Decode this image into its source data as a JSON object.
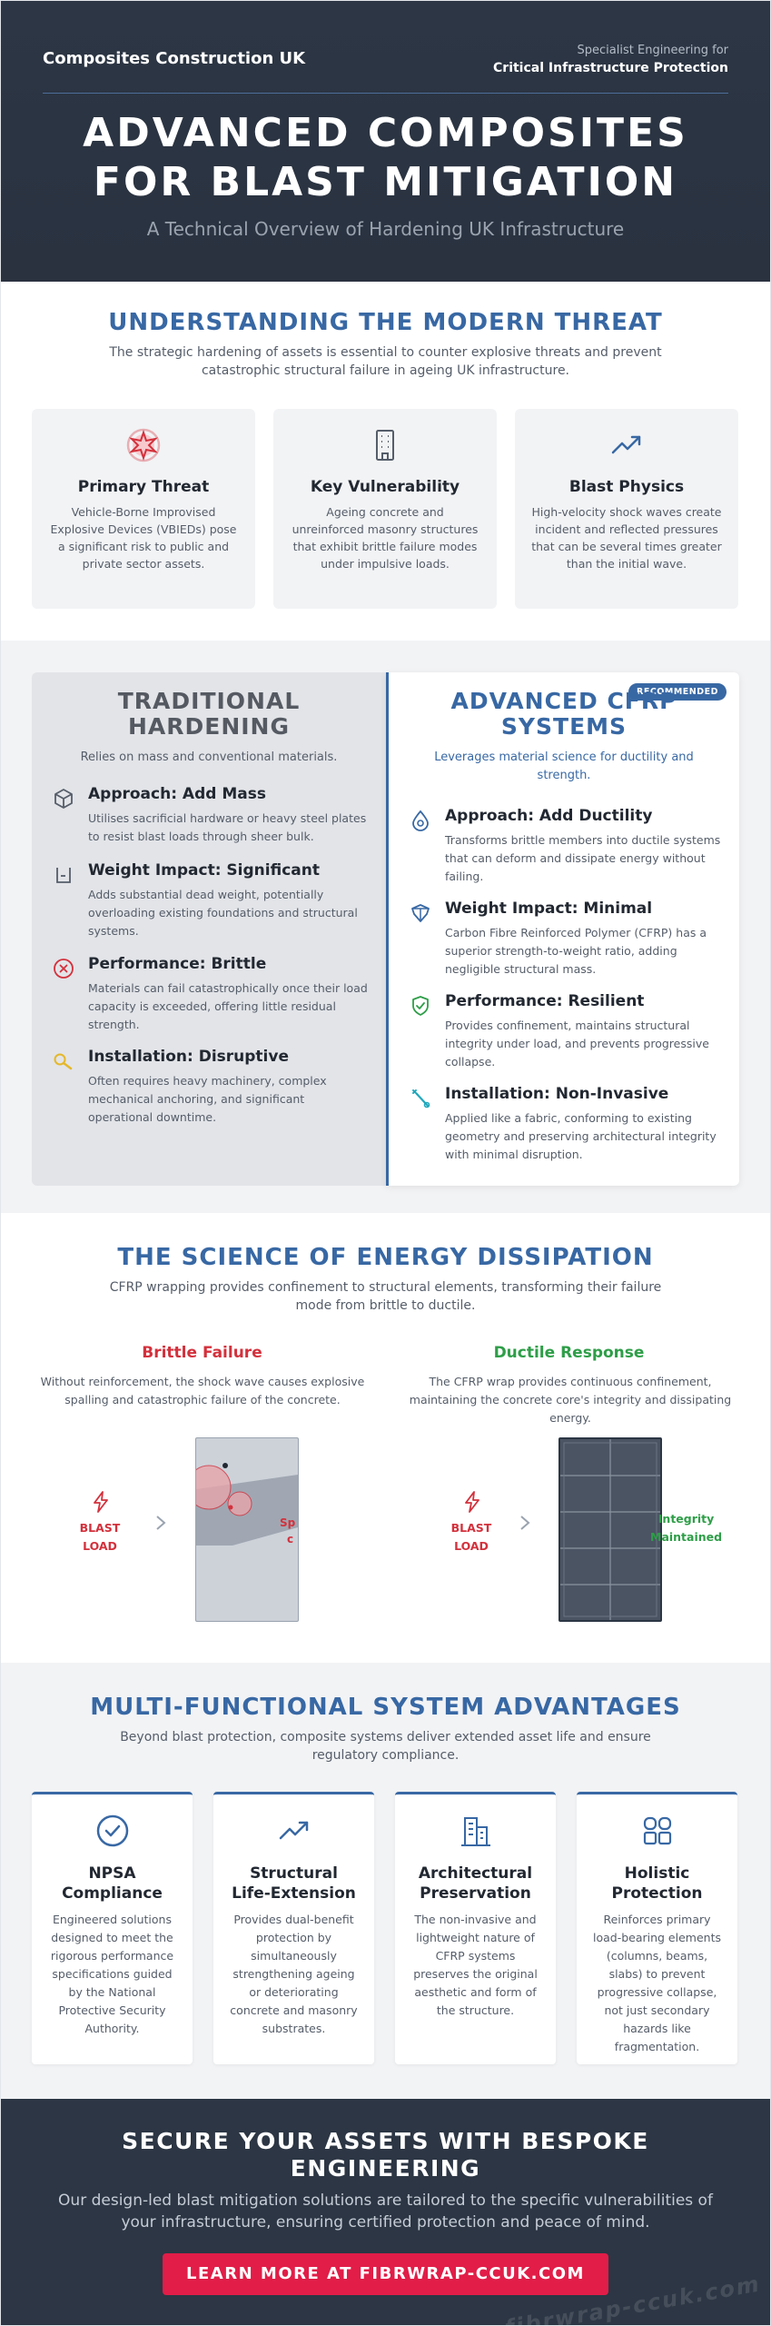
{
  "header": {
    "brand": "Composites Construction UK",
    "tagline_line1": "Specialist Engineering for",
    "tagline_line2": "Critical Infrastructure Protection",
    "title_line1": "ADVANCED COMPOSITES",
    "title_line2": "FOR BLAST MITIGATION",
    "subtitle": "A Technical Overview of Hardening UK Infrastructure"
  },
  "threat": {
    "title": "UNDERSTANDING THE MODERN THREAT",
    "subtitle": "The strategic hardening of assets is essential to counter explosive threats and prevent catastrophic structural failure in ageing UK infrastructure.",
    "cards": [
      {
        "icon": "explosion-icon",
        "title": "Primary Threat",
        "text": "Vehicle-Borne Improvised Explosive Devices (VBIEDs) pose a significant risk to public and private sector assets."
      },
      {
        "icon": "building-icon",
        "title": "Key Vulnerability",
        "text": "Ageing concrete and unreinforced masonry structures that exhibit brittle failure modes under impulsive loads."
      },
      {
        "icon": "trend-up-icon",
        "title": "Blast Physics",
        "text": "High-velocity shock waves create incident and reflected pressures that can be several times greater than the initial wave."
      }
    ]
  },
  "comparison": {
    "traditional": {
      "title_line1": "TRADITIONAL",
      "title_line2": "HARDENING",
      "subtitle": "Relies on mass and conventional materials.",
      "features": [
        {
          "icon": "cube-icon",
          "title": "Approach: Add Mass",
          "text": "Utilises sacrificial hardware or heavy steel plates to resist blast loads through sheer bulk."
        },
        {
          "icon": "weight-icon",
          "title": "Weight Impact: Significant",
          "text": "Adds substantial dead weight, potentially overloading existing foundations and structural systems."
        },
        {
          "icon": "x-circle-icon",
          "title": "Performance: Brittle",
          "text": "Materials can fail catastrophically once their load capacity is exceeded, offering little residual strength."
        },
        {
          "icon": "wrench-icon",
          "title": "Installation: Disruptive",
          "text": "Often requires heavy machinery, complex mechanical anchoring, and significant operational downtime."
        }
      ]
    },
    "advanced": {
      "badge": "RECOMMENDED",
      "title_line1": "ADVANCED CFRP",
      "title_line2": "SYSTEMS",
      "subtitle": "Leverages material science for ductility and strength.",
      "features": [
        {
          "icon": "droplet-icon",
          "title": "Approach: Add Ductility",
          "text": "Transforms brittle members into ductile systems that can deform and dissipate energy without failing."
        },
        {
          "icon": "feather-icon",
          "title": "Weight Impact: Minimal",
          "text": "Carbon Fibre Reinforced Polymer (CFRP) has a superior strength-to-weight ratio, adding negligible structural mass."
        },
        {
          "icon": "shield-check-icon",
          "title": "Performance: Resilient",
          "text": "Provides confinement, maintains structural integrity under load, and prevents progressive collapse."
        },
        {
          "icon": "tool-icon",
          "title": "Installation: Non-Invasive",
          "text": "Applied like a fabric, conforming to existing geometry and preserving architectural integrity with minimal disruption."
        }
      ]
    }
  },
  "science": {
    "title": "THE SCIENCE OF ENERGY DISSIPATION",
    "subtitle": "CFRP wrapping provides confinement to structural elements, transforming their failure mode from brittle to ductile.",
    "brittle": {
      "title": "Brittle Failure",
      "text": "Without reinforcement, the shock wave causes explosive spalling and catastrophic failure of the concrete.",
      "blast_line1": "BLAST",
      "blast_line2": "LOAD",
      "annotation_line1": "Sp",
      "annotation_line2": "c"
    },
    "ductile": {
      "title": "Ductile Response",
      "text": "The CFRP wrap provides continuous confinement, maintaining the concrete core's integrity and dissipating energy.",
      "blast_line1": "BLAST",
      "blast_line2": "LOAD",
      "annotation_line1": "Integrity",
      "annotation_line2": "Maintained"
    },
    "colors": {
      "brittle": "#d3313c",
      "ductile": "#2e9e48"
    }
  },
  "advantages": {
    "title": "MULTI-FUNCTIONAL SYSTEM ADVANTAGES",
    "subtitle": "Beyond blast protection, composite systems deliver extended asset life and ensure regulatory compliance.",
    "cards": [
      {
        "icon": "check-circle-icon",
        "title_line1": "NPSA",
        "title_line2": "Compliance",
        "text": "Engineered solutions designed to meet the rigorous performance specifications guided by the National Protective Security Authority."
      },
      {
        "icon": "trend-up-icon",
        "title_line1": "Structural",
        "title_line2": "Life-Extension",
        "text": "Provides dual-benefit protection by simultaneously strengthening ageing or deteriorating concrete and masonry substrates."
      },
      {
        "icon": "buildings-icon",
        "title_line1": "Architectural",
        "title_line2": "Preservation",
        "text": "The non-invasive and lightweight nature of CFRP systems preserves the original aesthetic and form of the structure."
      },
      {
        "icon": "grid-icon",
        "title_line1": "Holistic",
        "title_line2": "Protection",
        "text": "Reinforces primary load-bearing elements (columns, beams, slabs) to prevent progressive collapse, not just secondary hazards like fragmentation."
      }
    ]
  },
  "cta": {
    "title": "SECURE YOUR ASSETS WITH BESPOKE ENGINEERING",
    "text": "Our design-led blast mitigation solutions are tailored to the specific vulnerabilities of your infrastructure, ensuring certified protection and peace of mind.",
    "button": "LEARN MORE AT FIBRWRAP-CCUK.COM",
    "watermark": "fibrwrap-ccuk.com"
  },
  "theme": {
    "accent": "#3868a4",
    "dark": "#2c3644",
    "cta_button": "#e11d48",
    "danger": "#d3313c",
    "success": "#2e9e48",
    "warning": "#e5b82a"
  }
}
